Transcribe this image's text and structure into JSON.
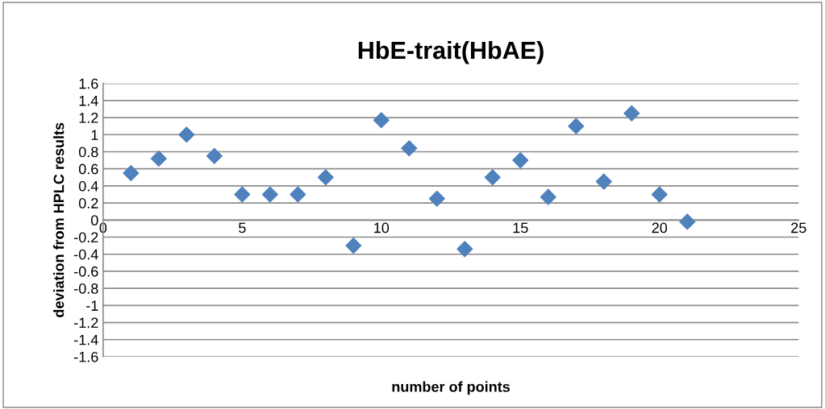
{
  "chart_data": {
    "type": "scatter",
    "title": "HbE-trait(HbAE)",
    "xlabel": "number of points",
    "ylabel": "deviation from HPLC results",
    "x": [
      1,
      2,
      3,
      4,
      5,
      6,
      7,
      8,
      9,
      10,
      11,
      12,
      13,
      14,
      15,
      16,
      17,
      18,
      19,
      20,
      21
    ],
    "series": [
      {
        "color": "#4f81bd",
        "values": [
          0.55,
          0.72,
          1.0,
          0.75,
          0.3,
          0.3,
          0.3,
          0.5,
          -0.3,
          1.17,
          0.84,
          0.25,
          -0.34,
          0.5,
          0.7,
          0.27,
          1.1,
          0.45,
          1.25,
          0.3,
          -0.02
        ]
      }
    ],
    "xlim": [
      0,
      25
    ],
    "xticks": [
      0,
      5,
      10,
      15,
      20,
      25
    ],
    "ylim": [
      -1.6,
      1.6
    ],
    "yticks": [
      {
        "value": 1.6,
        "label": "1.6"
      },
      {
        "value": 1.4,
        "label": "1.4"
      },
      {
        "value": 1.2,
        "label": "1.2"
      },
      {
        "value": 1,
        "label": "1"
      },
      {
        "value": 0.8,
        "label": "0.8"
      },
      {
        "value": 0.6,
        "label": "0.6"
      },
      {
        "value": 0.4,
        "label": "0.4"
      },
      {
        "value": 0.2,
        "label": "0.2"
      },
      {
        "value": 0,
        "label": "0"
      },
      {
        "value": -0.2,
        "label": "-0.2"
      },
      {
        "value": -0.4,
        "label": "-0.4"
      },
      {
        "value": -0.6,
        "label": "-0.6"
      },
      {
        "value": -0.8,
        "label": "-0.8"
      },
      {
        "value": -1,
        "label": "-1"
      },
      {
        "value": -1.2,
        "label": "-1.2"
      },
      {
        "value": -1.4,
        "label": "-1.4"
      },
      {
        "value": -1.6,
        "label": "-1.6"
      }
    ],
    "grid": "y",
    "marker": "diamond",
    "legend": false
  }
}
